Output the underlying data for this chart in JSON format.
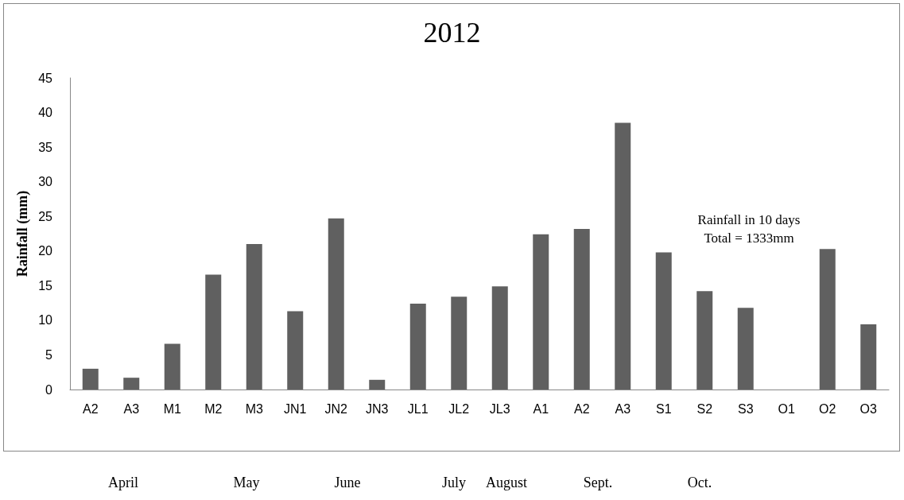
{
  "chart_data": {
    "type": "bar",
    "title": "2012",
    "ylabel": "Rainfall (mm)",
    "categories": [
      "A2",
      "A3",
      "M1",
      "M2",
      "M3",
      "JN1",
      "JN2",
      "JN3",
      "JL1",
      "JL2",
      "JL3",
      "A1",
      "A2",
      "A3",
      "S1",
      "S2",
      "S3",
      "O1",
      "O2",
      "O3"
    ],
    "values": [
      3.0,
      1.7,
      6.6,
      16.6,
      21.0,
      11.3,
      24.7,
      1.4,
      12.4,
      13.4,
      14.9,
      22.4,
      23.2,
      38.5,
      19.8,
      14.2,
      11.8,
      0,
      20.3,
      9.4
    ],
    "color": "#606060",
    "ylim": [
      0,
      45
    ],
    "yticks": [
      0,
      5,
      10,
      15,
      20,
      25,
      30,
      35,
      40,
      45
    ],
    "grid": false,
    "annotations": [
      "Rainfall in 10 days",
      "Total = 1333mm",
      "April",
      "May",
      "June",
      "July",
      "August",
      "Sept.",
      "Oct."
    ]
  }
}
